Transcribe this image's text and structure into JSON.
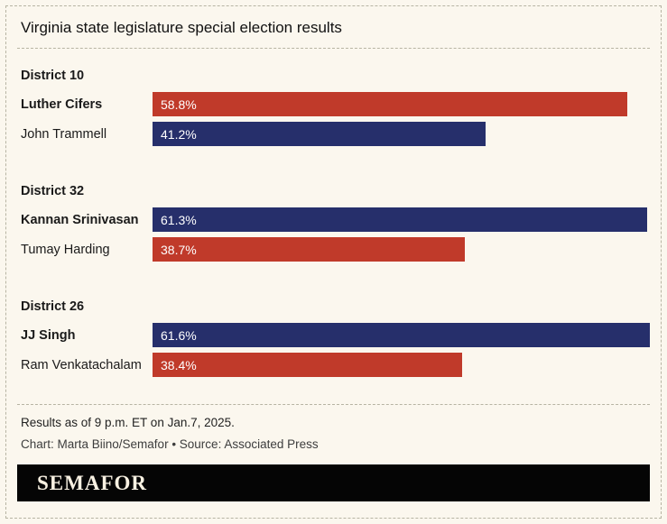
{
  "title": "Virginia state legislature special election results",
  "colors": {
    "red": "#c03a2a",
    "navy": "#262f6b",
    "background": "#fbf7ee",
    "logo_bar": "#050505",
    "logo_text": "#f8f1e2",
    "dash_border": "#b7b4a3"
  },
  "chart_data": {
    "type": "bar",
    "orientation": "horizontal",
    "title": "Virginia state legislature special election results",
    "xlabel": "",
    "ylabel": "",
    "value_unit": "percent",
    "max_value": 61.6,
    "legend": "none",
    "groups": [
      {
        "district": "District 10",
        "rows": [
          {
            "name": "Luther Cifers",
            "value": 58.8,
            "label": "58.8%",
            "color": "#c03a2a",
            "bold": true
          },
          {
            "name": "John Trammell",
            "value": 41.2,
            "label": "41.2%",
            "color": "#262f6b",
            "bold": false
          }
        ]
      },
      {
        "district": "District 32",
        "rows": [
          {
            "name": "Kannan Srinivasan",
            "value": 61.3,
            "label": "61.3%",
            "color": "#262f6b",
            "bold": true
          },
          {
            "name": "Tumay Harding",
            "value": 38.7,
            "label": "38.7%",
            "color": "#c03a2a",
            "bold": false
          }
        ]
      },
      {
        "district": "District 26",
        "rows": [
          {
            "name": "JJ Singh",
            "value": 61.6,
            "label": "61.6%",
            "color": "#262f6b",
            "bold": true
          },
          {
            "name": "Ram Venkatachalam",
            "value": 38.4,
            "label": "38.4%",
            "color": "#c03a2a",
            "bold": false
          }
        ]
      }
    ]
  },
  "footer": {
    "note": "Results as of 9 p.m. ET on Jan.7, 2025.",
    "credit": "Chart: Marta Biino/Semafor • Source: Associated Press"
  },
  "logo": "SEMAFOR"
}
